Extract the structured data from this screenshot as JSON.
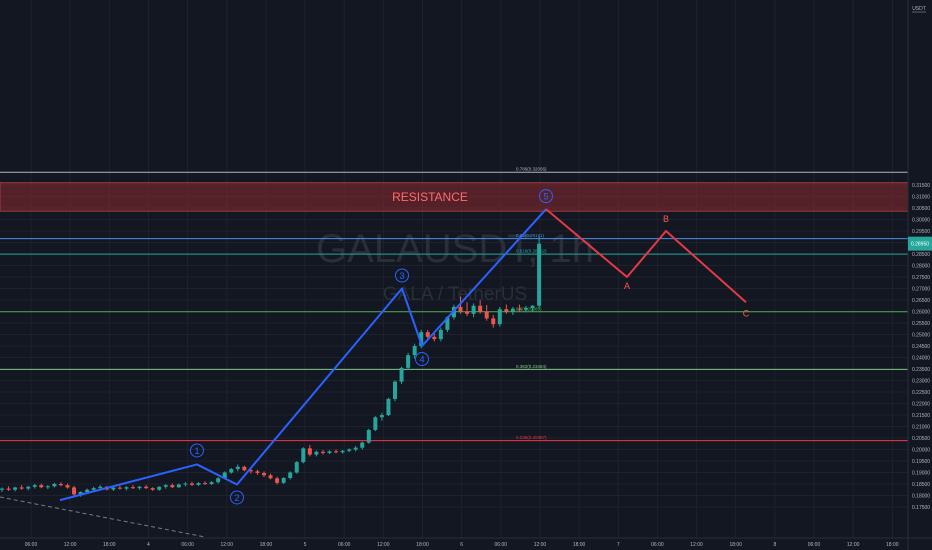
{
  "chart_data": {
    "type": "candlestick",
    "title": "GALAUSDT, 1h",
    "subtitle": "GALA / TetherUS",
    "currency_label": "USDT",
    "current_price_badge": "0.28950",
    "resistance_label": "RESISTANCE",
    "resistance_zone": [
      0.3036,
      0.316
    ],
    "ylim": [
      0.1725,
      0.3225
    ],
    "y_ticks": [
      "0.31500",
      "0.31000",
      "0.30500",
      "0.30000",
      "0.29500",
      "0.29000",
      "0.28500",
      "0.28000",
      "0.27500",
      "0.27000",
      "0.26500",
      "0.26000",
      "0.25500",
      "0.25000",
      "0.24500",
      "0.24000",
      "0.23500",
      "0.23000",
      "0.22500",
      "0.22000",
      "0.21500",
      "0.21000",
      "0.20500",
      "0.20000",
      "0.19500",
      "0.19000",
      "0.18500",
      "0.18000",
      "0.17500"
    ],
    "x_ticks": [
      "06:00",
      "12:00",
      "18:00",
      "4",
      "06:00",
      "12:00",
      "18:00",
      "5",
      "06:00",
      "12:00",
      "18:00",
      "6",
      "06:00",
      "12:00",
      "18:00",
      "7",
      "06:00",
      "12:00",
      "18:00",
      "8",
      "06:00",
      "12:00",
      "18:00"
    ],
    "fib_levels": [
      {
        "label": "0.786(0.32056)",
        "value": 0.32056,
        "color": "#b2b5be"
      },
      {
        "label": "0.65(0.29171)",
        "value": 0.29171,
        "color": "#4d8fe6"
      },
      {
        "label": "0.618(0.28492)",
        "value": 0.28492,
        "color": "#26a69a"
      },
      {
        "label": "0.5(0.25989)",
        "value": 0.25989,
        "color": "#4caf50"
      },
      {
        "label": "0.382(0.23484)",
        "value": 0.23484,
        "color": "#81c784"
      },
      {
        "label": "0.236(0.20387)",
        "value": 0.20387,
        "color": "#f23645"
      }
    ],
    "waves": [
      {
        "label": "1",
        "value": 0.1935
      },
      {
        "label": "2",
        "value": 0.1848
      },
      {
        "label": "3",
        "value": 0.27
      },
      {
        "label": "4",
        "value": 0.245
      },
      {
        "label": "5",
        "value": 0.3045
      }
    ],
    "projection": [
      {
        "label": "",
        "value": 0.3045
      },
      {
        "label": "A",
        "value": 0.275
      },
      {
        "label": "B",
        "value": 0.295
      },
      {
        "label": "C",
        "value": 0.264
      }
    ],
    "candles": [
      [
        0.1825,
        0.1835,
        0.1815,
        0.183
      ],
      [
        0.183,
        0.184,
        0.182,
        0.1825
      ],
      [
        0.1825,
        0.1838,
        0.1818,
        0.1835
      ],
      [
        0.1835,
        0.1845,
        0.1825,
        0.183
      ],
      [
        0.183,
        0.1842,
        0.1822,
        0.1838
      ],
      [
        0.1838,
        0.185,
        0.183,
        0.1845
      ],
      [
        0.1845,
        0.1852,
        0.1832,
        0.1836
      ],
      [
        0.1836,
        0.1845,
        0.1828,
        0.184
      ],
      [
        0.184,
        0.1855,
        0.1835,
        0.185
      ],
      [
        0.185,
        0.1858,
        0.184,
        0.1845
      ],
      [
        0.1845,
        0.1852,
        0.183,
        0.1835
      ],
      [
        0.1835,
        0.1842,
        0.18,
        0.1805
      ],
      [
        0.1805,
        0.1818,
        0.1795,
        0.1815
      ],
      [
        0.1815,
        0.183,
        0.1808,
        0.1825
      ],
      [
        0.1825,
        0.1838,
        0.1818,
        0.1832
      ],
      [
        0.1832,
        0.1845,
        0.1826,
        0.1838
      ],
      [
        0.1838,
        0.1842,
        0.1822,
        0.1826
      ],
      [
        0.1826,
        0.1838,
        0.182,
        0.1834
      ],
      [
        0.1834,
        0.1842,
        0.1826,
        0.183
      ],
      [
        0.183,
        0.184,
        0.1822,
        0.1836
      ],
      [
        0.1836,
        0.1845,
        0.1828,
        0.1832
      ],
      [
        0.1832,
        0.1842,
        0.1825,
        0.1838
      ],
      [
        0.1838,
        0.1846,
        0.1828,
        0.1832
      ],
      [
        0.1832,
        0.1836,
        0.182,
        0.1825
      ],
      [
        0.1825,
        0.184,
        0.182,
        0.1838
      ],
      [
        0.1838,
        0.185,
        0.183,
        0.1845
      ],
      [
        0.1845,
        0.1852,
        0.1832,
        0.1836
      ],
      [
        0.1836,
        0.1852,
        0.1832,
        0.1848
      ],
      [
        0.1848,
        0.1858,
        0.184,
        0.1852
      ],
      [
        0.1852,
        0.186,
        0.1842,
        0.1846
      ],
      [
        0.1846,
        0.1858,
        0.1842,
        0.1854
      ],
      [
        0.1854,
        0.1862,
        0.1846,
        0.185
      ],
      [
        0.185,
        0.1862,
        0.1845,
        0.1858
      ],
      [
        0.1858,
        0.188,
        0.1852,
        0.1875
      ],
      [
        0.1875,
        0.1905,
        0.187,
        0.19
      ],
      [
        0.19,
        0.192,
        0.1895,
        0.1915
      ],
      [
        0.1915,
        0.1935,
        0.1905,
        0.1925
      ],
      [
        0.1925,
        0.193,
        0.1905,
        0.191
      ],
      [
        0.191,
        0.1918,
        0.1895,
        0.1905
      ],
      [
        0.1905,
        0.1912,
        0.189,
        0.1898
      ],
      [
        0.1898,
        0.1905,
        0.188,
        0.1888
      ],
      [
        0.1888,
        0.1895,
        0.187,
        0.1875
      ],
      [
        0.1875,
        0.1882,
        0.1848,
        0.1855
      ],
      [
        0.1855,
        0.188,
        0.185,
        0.1876
      ],
      [
        0.1876,
        0.1905,
        0.187,
        0.19
      ],
      [
        0.19,
        0.195,
        0.1895,
        0.1945
      ],
      [
        0.1945,
        0.201,
        0.194,
        0.2005
      ],
      [
        0.2005,
        0.202,
        0.197,
        0.1978
      ],
      [
        0.1978,
        0.1995,
        0.197,
        0.199
      ],
      [
        0.199,
        0.1998,
        0.1978,
        0.1985
      ],
      [
        0.1985,
        0.1996,
        0.198,
        0.1992
      ],
      [
        0.1992,
        0.2,
        0.1984,
        0.1988
      ],
      [
        0.1988,
        0.1998,
        0.1982,
        0.1994
      ],
      [
        0.1994,
        0.2005,
        0.1988,
        0.2
      ],
      [
        0.2,
        0.2015,
        0.1992,
        0.2008
      ],
      [
        0.2008,
        0.2035,
        0.2,
        0.203
      ],
      [
        0.203,
        0.209,
        0.2025,
        0.2085
      ],
      [
        0.2085,
        0.2145,
        0.208,
        0.214
      ],
      [
        0.214,
        0.216,
        0.2125,
        0.215
      ],
      [
        0.215,
        0.2225,
        0.2145,
        0.222
      ],
      [
        0.222,
        0.23,
        0.221,
        0.2295
      ],
      [
        0.2295,
        0.236,
        0.2285,
        0.2355
      ],
      [
        0.2355,
        0.242,
        0.2345,
        0.241
      ],
      [
        0.241,
        0.246,
        0.2395,
        0.245
      ],
      [
        0.245,
        0.252,
        0.244,
        0.251
      ],
      [
        0.251,
        0.252,
        0.248,
        0.249
      ],
      [
        0.249,
        0.2505,
        0.247,
        0.248
      ],
      [
        0.248,
        0.253,
        0.247,
        0.252
      ],
      [
        0.252,
        0.258,
        0.251,
        0.2575
      ],
      [
        0.2575,
        0.263,
        0.2565,
        0.262
      ],
      [
        0.262,
        0.2665,
        0.259,
        0.26
      ],
      [
        0.26,
        0.264,
        0.258,
        0.259
      ],
      [
        0.259,
        0.2635,
        0.2575,
        0.2625
      ],
      [
        0.2625,
        0.265,
        0.259,
        0.26
      ],
      [
        0.26,
        0.2628,
        0.256,
        0.257
      ],
      [
        0.257,
        0.2585,
        0.253,
        0.2545
      ],
      [
        0.2545,
        0.262,
        0.2535,
        0.261
      ],
      [
        0.261,
        0.263,
        0.259,
        0.26
      ],
      [
        0.26,
        0.262,
        0.2585,
        0.2612
      ],
      [
        0.2612,
        0.263,
        0.26,
        0.2608
      ],
      [
        0.2608,
        0.2625,
        0.2596,
        0.2615
      ],
      [
        0.2615,
        0.2628,
        0.26,
        0.2625
      ],
      [
        0.2625,
        0.293,
        0.2615,
        0.2895
      ]
    ]
  }
}
